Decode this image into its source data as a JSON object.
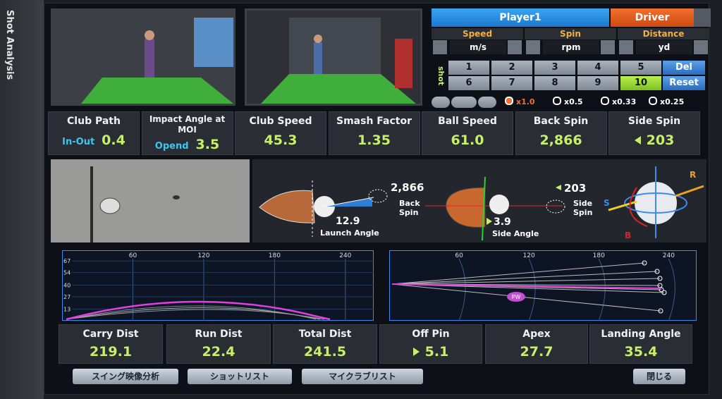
{
  "sidebar_title": "Shot Analysis",
  "player": "Player1",
  "club": "Driver",
  "units": [
    {
      "label": "Speed",
      "value": "m/s"
    },
    {
      "label": "Spin",
      "value": "rpm"
    },
    {
      "label": "Distance",
      "value": "yd"
    }
  ],
  "shot_label": "shot",
  "shots": [
    "1",
    "2",
    "3",
    "4",
    "5",
    "6",
    "7",
    "8",
    "9",
    "10"
  ],
  "shot_actions": [
    "Del",
    "Reset"
  ],
  "playback_speeds": [
    "x1.0",
    "x0.5",
    "x0.33",
    "x0.25"
  ],
  "metrics": [
    {
      "label": "Club Path",
      "sub": "In-Out",
      "value": "0.4"
    },
    {
      "label": "Impact Angle at MOI",
      "sub": "Opend",
      "value": "3.5"
    },
    {
      "label": "Club Speed",
      "value": "45.3"
    },
    {
      "label": "Smash Factor",
      "value": "1.35"
    },
    {
      "label": "Ball Speed",
      "value": "61.0"
    },
    {
      "label": "Back Spin",
      "value": "2,866"
    },
    {
      "label": "Side Spin",
      "value": "203"
    }
  ],
  "diagram": {
    "back_spin": "2,866",
    "back_spin_label": "Back Spin",
    "launch_angle": "12.9",
    "launch_angle_label": "Launch Angle",
    "side_spin": "203",
    "side_spin_label": "Side Spin",
    "side_angle": "3.9",
    "side_angle_label": "Side Angle",
    "axis_labels": [
      "R",
      "S",
      "B"
    ]
  },
  "trajectory": {
    "xlim": [
      0,
      264
    ],
    "ylim": [
      0,
      79
    ],
    "xticks": [
      60,
      120,
      180,
      240
    ],
    "yticks": [
      67,
      54,
      40,
      27,
      13
    ]
  },
  "dispersion": {
    "xlim": [
      0,
      264
    ],
    "xticks": [
      60,
      120,
      180,
      240
    ],
    "marker": "PW"
  },
  "results": [
    {
      "label": "Carry Dist",
      "value": "219.1"
    },
    {
      "label": "Run Dist",
      "value": "22.4"
    },
    {
      "label": "Total Dist",
      "value": "241.5"
    },
    {
      "label": "Off Pin",
      "value": "5.1"
    },
    {
      "label": "Apex",
      "value": "27.7"
    },
    {
      "label": "Landing Angle",
      "value": "35.4"
    }
  ],
  "buttons": [
    "スイング映像分析",
    "ショットリスト",
    "マイクラブリスト",
    "閉じる"
  ]
}
